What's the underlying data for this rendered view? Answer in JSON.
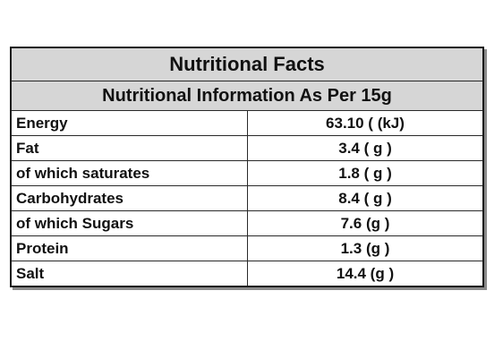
{
  "table": {
    "title": "Nutritional Facts",
    "subtitle": "Nutritional Information As Per 15g",
    "rows": [
      {
        "nutrient": "Energy",
        "value": "63.10 ( (kJ)"
      },
      {
        "nutrient": "Fat",
        "value": "3.4 ( g )"
      },
      {
        "nutrient": "of which saturates",
        "value": "1.8 ( g )"
      },
      {
        "nutrient": "Carbohydrates",
        "value": "8.4 ( g )"
      },
      {
        "nutrient": "of which Sugars",
        "value": "7.6 (g )"
      },
      {
        "nutrient": "Protein",
        "value": "1.3 (g )"
      },
      {
        "nutrient": "Salt",
        "value": "14.4 (g )"
      }
    ]
  }
}
